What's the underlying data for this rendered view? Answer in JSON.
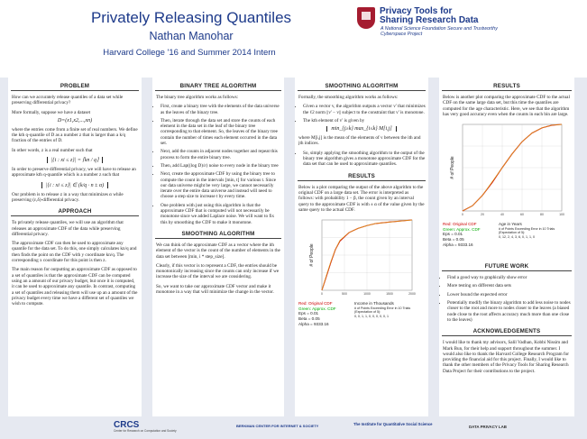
{
  "header": {
    "title": "Privately Releasing Quantiles",
    "author": "Nathan Manohar",
    "affiliation": "Harvard College '16 and Summer 2014 Intern",
    "logo_title": "Privacy Tools for Sharing Research Data",
    "logo_subtitle": "A National Science Foundation Secure and Trustworthy Cyberspace Project"
  },
  "col1": {
    "problem_title": "PROBLEM",
    "p1": "How can we accurately release quantiles of a data set while preserving differential privacy?",
    "p2": "More formally, suppose we have a dataset",
    "eq1": "D=(x1,x2,...,xn)",
    "p3": "where the entries come from a finite set of real numbers. We define the kth q-quantile of D as a number z that is larger than a k/q fraction of the entries of D.",
    "p4": "In other words, z is a real number such that",
    "eq2": "|{i : xi ≤ z}| = ⌈kn / q⌉",
    "p5": "In order to preserve differential privacy, we will have to release an approximate kth q-quantile which is a number z such that",
    "eq3": "|{i : xi ≤ z}| ∈ (k/q · n ± α)",
    "p6": "Our problem is to release z in a way that minimizes α while preserving (ε,δ)-differential privacy.",
    "approach_title": "APPROACH",
    "a1": "To privately release quantiles, we will use an algorithm that releases an approximate CDF of the data while preserving differential privacy.",
    "a2": "The approximate CDF can then be used to approximate any quantile for the data set. To do this, one simply calculates kn/q and then finds the point on the CDF with y coordinate kn/q. The corresponding x coordinate for this point is then z.",
    "a3": "The main reason for outputting an approximate CDF as opposed to a set of quantiles is that the approximate CDF can be computed using an a amount of our privacy budget, but once it is computed, it can be used to approximate any quantile. In contrast, computing a set of quantiles and releasing them will use up an a amount of the privacy budget every time we have a different set of quantiles we wish to compute."
  },
  "col2": {
    "bt_title": "BINARY TREE ALGORITHM",
    "intro": "The binary tree algorithm works as follows:",
    "items": [
      "First, create a binary tree with the elements of the data universe as the leaves of the binary tree.",
      "Then, iterate through the data set and store the counts of each element in the data set in the leaf of the binary tree corresponding to that element. So, the leaves of the binary tree contain the number of times each element occurred in the data set.",
      "Next, add the counts in adjacent nodes together and repeat this process to form the entire binary tree.",
      "Then, add Lap((log D)/ε) noise to every node in the binary tree",
      "Next, create the approximate CDF by using the binary tree to compute the count in the intervals [min, t] for various t. Since our data universe might be very large, we cannot necessarily iterate over the entire data universe and instead will need to choose a step size to increase t by every time.",
      "One problem with just using this algorithm is that the approximate CDF that is computed will not necessarily be monotone since we added Laplace noise. We will want to fix this by smoothing the CDF to make it monotone."
    ],
    "sm_title": "SMOOTHING ALGORITHM",
    "s1": "We can think of the approximate CDF as a vector where the ith element of the vector is the count of the number of elements in the data set between [min, i * step_size].",
    "s2": "Clearly, if this vector is to represent a CDF, the entries should be monotonically increasing since the counts can only increase if we increase the size of the interval we are considering.",
    "s3": "So, we want to take our approximate CDF vector and make it monotone in a way that will minimize the change in the vector."
  },
  "col3": {
    "sa_title": "SMOOTHING ALGORITHM",
    "p1": "Formally, the smoothing algorithm works as follows:",
    "i1": "Given a vector v, the algorithm outputs a vector v' that minimizes the ℓ2 norm ||v' − v|| subject to the constraint that v' is monotone.",
    "i2": "The kth element of v' is given by",
    "eq": "min_{j≥k} max_{i≤k} M[i,j]",
    "p2": "where M[i,j] is the mean of the elements of v between the ith and jth indices.",
    "i3": "So, simply applying the smoothing algorithm to the output of the binary tree algorithm gives a monotone approximate CDF for the data set that can be used to approximate quantiles.",
    "res_title": "RESULTS",
    "r1": "Below is a plot comparing the output of the above algorithm to the original CDF on a large data set. The error is interpreted as follows: with probability 1 − β, the count given by an interval query to the approximate CDF is with ± α of the value given by the same query to the actual CDF.",
    "legend": {
      "red": "Red: Original CDF",
      "green": "Green: Approx. CDF",
      "eps": "Eps = 0.01",
      "beta": "Beta = 0.05",
      "alpha": "Alpha = 9333.16",
      "xlabel": "Income in Thousands",
      "note1": "# of Points Exceeding Error in 10 Trials",
      "note2": "(Expectation of 5):",
      "note3": "0, 0, 1, 1, 0, 0, 0, 0, 0, 1"
    }
  },
  "col4": {
    "res_title": "RESULTS",
    "p1": "Below is another plot comparing the approximate CDF to the actual CDF on the same large data set, but this time the quantiles are computed for the age characteristic. Here, we see that the algorithm has very good accuracy even when the counts in each bin are large.",
    "legend": {
      "red": "Red: Original CDF",
      "green": "Green: Approx. CDF",
      "eps": "Eps = 0.01",
      "beta": "Beta = 0.05",
      "alpha": "Alpha = 9333.16",
      "xlabel": "Age in Years",
      "note1": "# of Points Exceeding Error in 10 Trials",
      "note2": "(Expectation of 5):",
      "note3": "0, 12, 2, 4, 3, 6, 0, 1, 1, 0"
    },
    "fw_title": "FUTURE WORK",
    "fw": [
      "Find a good way to graphically show error",
      "More testing on different data sets",
      "Lower bound the expected error",
      "Potentially modify the binary algorithm to add less noise to nodes closer to the root and more to nodes closer to the leaves (a biased node close to the root affects accuracy much more than one close to the leaves)"
    ],
    "ack_title": "ACKNOWLEDGEMENTS",
    "ack": "I would like to thank my advisors, Salil Vadhan, Kobbi Nissim and Mark Bun, for their help and support throughout the summer. I would also like to thank the Harvard College Research Program for providing the financial aid for this project. Finally, I would like to thank the other members of the Privacy Tools for Sharing Research Data Project for their contributions to the project."
  },
  "chart_data": [
    {
      "type": "line",
      "title": "",
      "xlabel": "Income in Thousands",
      "ylabel": "# of People",
      "xlim": [
        0,
        2000
      ],
      "ylim": [
        0,
        100
      ],
      "xticks": [
        0,
        500,
        1000,
        1500,
        2000
      ],
      "grid": true,
      "series": [
        {
          "name": "Original CDF",
          "color": "#cc0000",
          "x": [
            0,
            100,
            200,
            300,
            400,
            600,
            800,
            1000,
            1200,
            1500,
            2000
          ],
          "y": [
            0,
            20,
            40,
            58,
            70,
            82,
            88,
            92,
            95,
            97,
            100
          ]
        },
        {
          "name": "Approx. CDF",
          "color": "#e0a020",
          "x": [
            0,
            100,
            200,
            300,
            400,
            600,
            800,
            1000,
            1200,
            1500,
            2000
          ],
          "y": [
            0,
            21,
            41,
            58,
            71,
            82,
            88,
            92,
            95,
            97,
            100
          ]
        }
      ]
    },
    {
      "type": "line",
      "title": "",
      "xlabel": "Age in Years",
      "ylabel": "# of People",
      "xlim": [
        0,
        100
      ],
      "ylim": [
        0,
        100
      ],
      "xticks": [
        0,
        20,
        40,
        60,
        80,
        100
      ],
      "grid": true,
      "series": [
        {
          "name": "Original CDF",
          "color": "#cc0000",
          "x": [
            0,
            10,
            20,
            30,
            40,
            50,
            60,
            70,
            80,
            90,
            100
          ],
          "y": [
            0,
            6,
            18,
            33,
            50,
            66,
            80,
            90,
            96,
            99,
            100
          ]
        },
        {
          "name": "Approx. CDF",
          "color": "#e0a020",
          "x": [
            0,
            10,
            20,
            30,
            40,
            50,
            60,
            70,
            80,
            90,
            100
          ],
          "y": [
            0,
            6,
            18,
            34,
            50,
            66,
            80,
            90,
            96,
            99,
            100
          ]
        }
      ]
    }
  ],
  "footer": {
    "crcs": "CRCS",
    "crcs_sub": "Center for Research on Computation and Society",
    "berkman": "BERKMAN CENTER FOR INTERNET & SOCIETY",
    "iqss": "The Institute for Quantitative Social Science",
    "data_privacy": "DATA PRIVACY LAB"
  }
}
